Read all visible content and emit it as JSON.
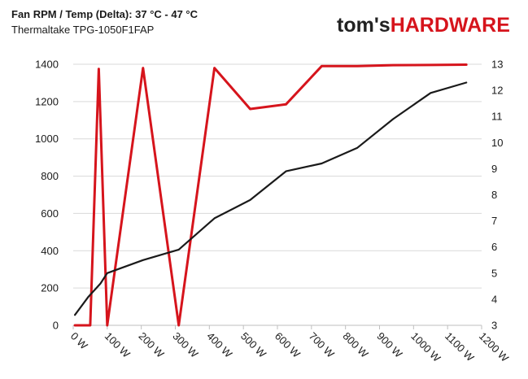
{
  "chart_data": {
    "type": "line",
    "title": "Fan RPM / Temp (Delta): 37 °C - 47 °C",
    "subtitle": "Thermaltake TPG-1050F1FAP",
    "brand": {
      "part1": "tom's",
      "part2": "HARDWARE"
    },
    "x_ticks": [
      "0 W",
      "100 W",
      "200 W",
      "300 W",
      "400 W",
      "500 W",
      "600 W",
      "700 W",
      "800 W",
      "900 W",
      "1000 W",
      "1100 W",
      "1200 W"
    ],
    "xlim": [
      0,
      1200
    ],
    "ylim_left": [
      0,
      1400
    ],
    "y_ticks_left": [
      "0",
      "200",
      "400",
      "600",
      "800",
      "1000",
      "1200",
      "1400"
    ],
    "ylim_right": [
      3,
      13
    ],
    "y_ticks_right": [
      "3",
      "4",
      "5",
      "6",
      "7",
      "8",
      "9",
      "10",
      "11",
      "12",
      "13"
    ],
    "grid": true,
    "series": [
      {
        "axis": "left",
        "color": "#d6141c",
        "points": [
          [
            5,
            0
          ],
          [
            50,
            0
          ],
          [
            75,
            1375
          ],
          [
            100,
            0
          ],
          [
            205,
            1380
          ],
          [
            310,
            0
          ],
          [
            415,
            1380
          ],
          [
            520,
            1160
          ],
          [
            625,
            1185
          ],
          [
            730,
            1390
          ],
          [
            835,
            1390
          ],
          [
            940,
            1395
          ],
          [
            1050,
            1396
          ],
          [
            1155,
            1398
          ]
        ]
      },
      {
        "axis": "right",
        "color": "#1a1a1a",
        "points": [
          [
            5,
            3.4
          ],
          [
            45,
            4.1
          ],
          [
            80,
            4.6
          ],
          [
            100,
            5.0
          ],
          [
            205,
            5.5
          ],
          [
            310,
            5.9
          ],
          [
            415,
            7.1
          ],
          [
            520,
            7.8
          ],
          [
            625,
            8.9
          ],
          [
            730,
            9.2
          ],
          [
            835,
            9.8
          ],
          [
            940,
            10.9
          ],
          [
            1050,
            11.9
          ],
          [
            1155,
            12.3
          ]
        ]
      }
    ]
  }
}
